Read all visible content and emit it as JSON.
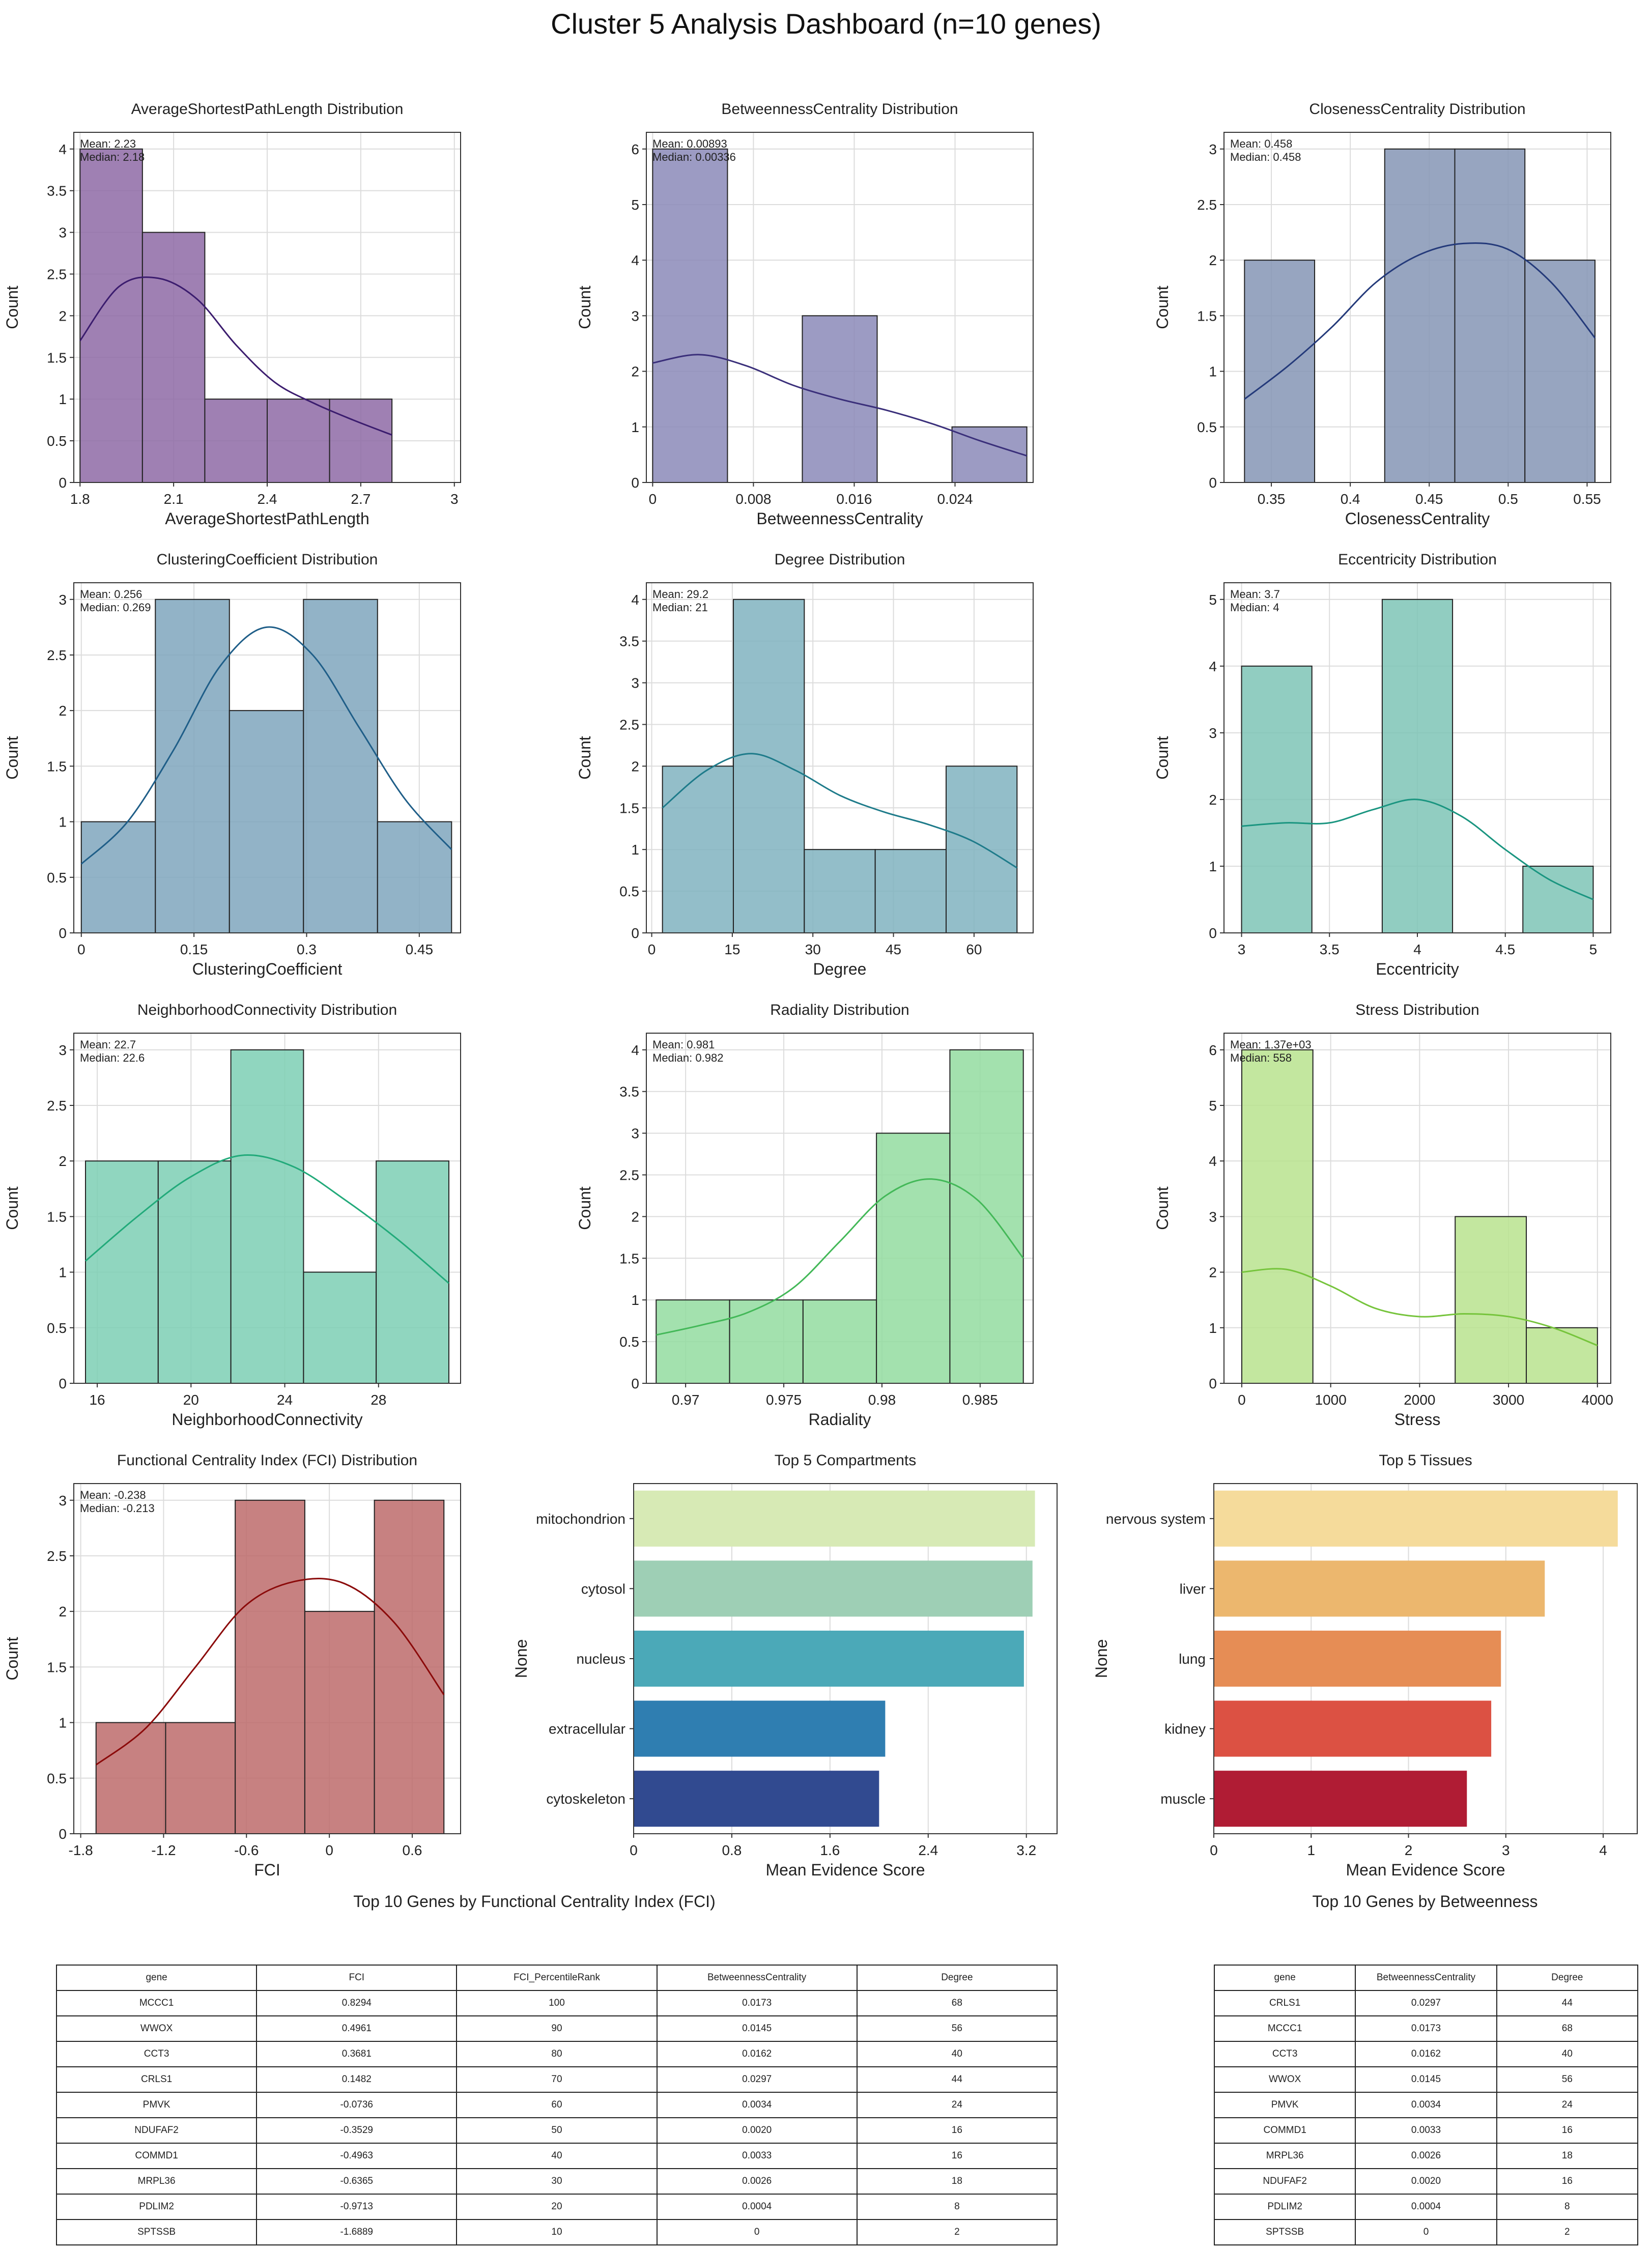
{
  "title": "Cluster 5 Analysis Dashboard (n=10 genes)",
  "chart_data": [
    {
      "type": "histogram",
      "title": "AverageShortestPathLength Distribution",
      "xlabel": "AverageShortestPathLength",
      "ylabel": "Count",
      "bin_edges": [
        1.8,
        2.0,
        2.2,
        2.4,
        2.6,
        2.8
      ],
      "counts": [
        4,
        3,
        1,
        1,
        1
      ],
      "xlim": [
        1.78,
        3.02
      ],
      "ylim": [
        0,
        4.2
      ],
      "xticks": [
        1.8,
        2.1,
        2.4,
        2.7,
        3.0
      ],
      "xtick_labels": [
        "1.8",
        "2.1",
        "2.4",
        "2.7",
        "3"
      ],
      "yticks": [
        0,
        0.5,
        1,
        1.5,
        2,
        2.5,
        3,
        3.5,
        4
      ],
      "ytick_labels": [
        "0",
        "0.5",
        "1",
        "1.5",
        "2",
        "2.5",
        "3",
        "3.5",
        "4"
      ],
      "kde": [
        1.7,
        2.35,
        2.45,
        2.2,
        1.65,
        1.2,
        0.95,
        0.75,
        0.57
      ],
      "color": "#8e6aa6",
      "line_color": "#3b1c6e",
      "stats": [
        "Mean: 2.23",
        "Median: 2.18"
      ]
    },
    {
      "type": "histogram",
      "title": "BetweennessCentrality Distribution",
      "xlabel": "BetweennessCentrality",
      "ylabel": "Count",
      "bin_edges": [
        0,
        0.00594,
        0.01188,
        0.01782,
        0.02376,
        0.0297
      ],
      "counts": [
        6,
        0,
        3,
        0,
        1
      ],
      "xlim": [
        -0.0005,
        0.0302
      ],
      "ylim": [
        0,
        6.3
      ],
      "xticks": [
        0,
        0.008,
        0.016,
        0.024
      ],
      "xtick_labels": [
        "0",
        "0.008",
        "0.016",
        "0.024"
      ],
      "yticks": [
        0,
        1,
        2,
        3,
        4,
        5,
        6
      ],
      "ytick_labels": [
        "0",
        "1",
        "2",
        "3",
        "4",
        "5",
        "6"
      ],
      "kde": [
        2.15,
        2.3,
        2.1,
        1.75,
        1.5,
        1.3,
        1.05,
        0.75,
        0.48
      ],
      "color": "#8b8ab8",
      "line_color": "#3a2f7a",
      "stats": [
        "Mean: 0.00893",
        "Median: 0.00336"
      ]
    },
    {
      "type": "histogram",
      "title": "ClosenessCentrality Distribution",
      "xlabel": "ClosenessCentrality",
      "ylabel": "Count",
      "bin_edges": [
        0.333,
        0.3774,
        0.4218,
        0.4662,
        0.5106,
        0.555
      ],
      "counts": [
        2,
        0,
        3,
        3,
        2
      ],
      "xlim": [
        0.32,
        0.565
      ],
      "ylim": [
        0,
        3.15
      ],
      "xticks": [
        0.35,
        0.4,
        0.45,
        0.5,
        0.55
      ],
      "xtick_labels": [
        "0.35",
        "0.4",
        "0.45",
        "0.5",
        "0.55"
      ],
      "yticks": [
        0,
        0.5,
        1,
        1.5,
        2,
        2.5,
        3
      ],
      "ytick_labels": [
        "0",
        "0.5",
        "1",
        "1.5",
        "2",
        "2.5",
        "3"
      ],
      "kde": [
        0.75,
        1.05,
        1.4,
        1.8,
        2.05,
        2.15,
        2.1,
        1.8,
        1.3
      ],
      "color": "#8595b5",
      "line_color": "#243a7a",
      "stats": [
        "Mean: 0.458",
        "Median: 0.458"
      ]
    },
    {
      "type": "histogram",
      "title": "ClusteringCoefficient Distribution",
      "xlabel": "ClusteringCoefficient",
      "ylabel": "Count",
      "bin_edges": [
        0,
        0.0986,
        0.1972,
        0.2958,
        0.3944,
        0.493
      ],
      "counts": [
        1,
        3,
        2,
        3,
        1
      ],
      "xlim": [
        -0.01,
        0.505
      ],
      "ylim": [
        0,
        3.15
      ],
      "xticks": [
        0,
        0.15,
        0.3,
        0.45
      ],
      "xtick_labels": [
        "0",
        "0.15",
        "0.3",
        "0.45"
      ],
      "yticks": [
        0,
        0.5,
        1,
        1.5,
        2,
        2.5,
        3
      ],
      "ytick_labels": [
        "0",
        "0.5",
        "1",
        "1.5",
        "2",
        "2.5",
        "3"
      ],
      "kde": [
        0.62,
        1.0,
        1.65,
        2.4,
        2.75,
        2.5,
        1.85,
        1.2,
        0.75
      ],
      "color": "#7fa6bd",
      "line_color": "#1f5e88",
      "stats": [
        "Mean: 0.256",
        "Median: 0.269"
      ]
    },
    {
      "type": "histogram",
      "title": "Degree Distribution",
      "xlabel": "Degree",
      "ylabel": "Count",
      "bin_edges": [
        2,
        15.2,
        28.4,
        41.6,
        54.8,
        68
      ],
      "counts": [
        2,
        4,
        1,
        1,
        2
      ],
      "xlim": [
        -1,
        71
      ],
      "ylim": [
        0,
        4.2
      ],
      "xticks": [
        0,
        15,
        30,
        45,
        60
      ],
      "xtick_labels": [
        "0",
        "15",
        "30",
        "45",
        "60"
      ],
      "yticks": [
        0,
        0.5,
        1,
        1.5,
        2,
        2.5,
        3,
        3.5,
        4
      ],
      "ytick_labels": [
        "0",
        "0.5",
        "1",
        "1.5",
        "2",
        "2.5",
        "3",
        "3.5",
        "4"
      ],
      "kde": [
        1.5,
        1.95,
        2.15,
        1.95,
        1.65,
        1.45,
        1.3,
        1.1,
        0.78
      ],
      "color": "#80b3bf",
      "line_color": "#1e7b8a",
      "stats": [
        "Mean: 29.2",
        "Median: 21"
      ]
    },
    {
      "type": "histogram",
      "title": "Eccentricity Distribution",
      "xlabel": "Eccentricity",
      "ylabel": "Count",
      "bin_edges": [
        3,
        3.4,
        3.8,
        4.2,
        4.6,
        5
      ],
      "counts": [
        4,
        0,
        5,
        0,
        1
      ],
      "xlim": [
        2.9,
        5.1
      ],
      "ylim": [
        0,
        5.25
      ],
      "xticks": [
        3,
        3.5,
        4,
        4.5,
        5
      ],
      "xtick_labels": [
        "3",
        "3.5",
        "4",
        "4.5",
        "5"
      ],
      "yticks": [
        0,
        1,
        2,
        3,
        4,
        5
      ],
      "ytick_labels": [
        "0",
        "1",
        "2",
        "3",
        "4",
        "5"
      ],
      "kde": [
        1.6,
        1.65,
        1.65,
        1.85,
        2.0,
        1.75,
        1.25,
        0.8,
        0.5
      ],
      "color": "#7ec4b6",
      "line_color": "#1a9580",
      "stats": [
        "Mean: 3.7",
        "Median: 4"
      ]
    },
    {
      "type": "histogram",
      "title": "NeighborhoodConnectivity Distribution",
      "xlabel": "NeighborhoodConnectivity",
      "ylabel": "Count",
      "bin_edges": [
        15.5,
        18.6,
        21.7,
        24.8,
        27.9,
        31
      ],
      "counts": [
        2,
        2,
        3,
        1,
        2
      ],
      "xlim": [
        15.0,
        31.5
      ],
      "ylim": [
        0,
        3.15
      ],
      "xticks": [
        16,
        20,
        24,
        28
      ],
      "xtick_labels": [
        "16",
        "20",
        "24",
        "28"
      ],
      "yticks": [
        0,
        0.5,
        1,
        1.5,
        2,
        2.5,
        3
      ],
      "ytick_labels": [
        "0",
        "0.5",
        "1",
        "1.5",
        "2",
        "2.5",
        "3"
      ],
      "kde": [
        1.1,
        1.5,
        1.85,
        2.05,
        1.95,
        1.65,
        1.3,
        0.9
      ],
      "color": "#7dcfb4",
      "line_color": "#22aa7a",
      "stats": [
        "Mean: 22.7",
        "Median: 22.6"
      ]
    },
    {
      "type": "histogram",
      "title": "Radiality Distribution",
      "xlabel": "Radiality",
      "ylabel": "Count",
      "bin_edges": [
        0.9685,
        0.97224,
        0.97598,
        0.97972,
        0.98346,
        0.9872
      ],
      "counts": [
        1,
        1,
        1,
        3,
        4
      ],
      "xlim": [
        0.968,
        0.9877
      ],
      "ylim": [
        0,
        4.2
      ],
      "xticks": [
        0.97,
        0.975,
        0.98,
        0.985
      ],
      "xtick_labels": [
        "0.97",
        "0.975",
        "0.98",
        "0.985"
      ],
      "yticks": [
        0,
        0.5,
        1,
        1.5,
        2,
        2.5,
        3,
        3.5,
        4
      ],
      "ytick_labels": [
        "0",
        "0.5",
        "1",
        "1.5",
        "2",
        "2.5",
        "3",
        "3.5",
        "4"
      ],
      "kde": [
        0.58,
        0.7,
        0.85,
        1.15,
        1.7,
        2.25,
        2.45,
        2.2,
        1.5
      ],
      "color": "#93dca0",
      "line_color": "#43b858",
      "stats": [
        "Mean: 0.981",
        "Median: 0.982"
      ]
    },
    {
      "type": "histogram",
      "title": "Stress Distribution",
      "xlabel": "Stress",
      "ylabel": "Count",
      "bin_edges": [
        0,
        800,
        1600,
        2400,
        3200,
        4000
      ],
      "counts": [
        6,
        0,
        0,
        3,
        1
      ],
      "xlim": [
        -200,
        4150
      ],
      "ylim": [
        0,
        6.3
      ],
      "xticks": [
        0,
        1000,
        2000,
        3000,
        4000
      ],
      "xtick_labels": [
        "0",
        "1000",
        "2000",
        "3000",
        "4000"
      ],
      "yticks": [
        0,
        1,
        2,
        3,
        4,
        5,
        6
      ],
      "ytick_labels": [
        "0",
        "1",
        "2",
        "3",
        "4",
        "5",
        "6"
      ],
      "kde": [
        2.0,
        2.05,
        1.75,
        1.35,
        1.2,
        1.25,
        1.2,
        1.0,
        0.68
      ],
      "color": "#b9e38e",
      "line_color": "#76c43c",
      "stats": [
        "Mean: 1.37e+03",
        "Median: 558"
      ]
    },
    {
      "type": "histogram",
      "title": "Functional Centrality Index (FCI) Distribution",
      "xlabel": "FCI",
      "ylabel": "Count",
      "bin_edges": [
        -1.6889,
        -1.1852,
        -0.6815,
        -0.1777,
        0.326,
        0.8294
      ],
      "counts": [
        1,
        1,
        3,
        2,
        3
      ],
      "xlim": [
        -1.85,
        0.95
      ],
      "ylim": [
        0,
        3.15
      ],
      "xticks": [
        -1.8,
        -1.2,
        -0.6,
        0,
        0.6
      ],
      "xtick_labels": [
        "-1.8",
        "-1.2",
        "-0.6",
        "0",
        "0.6"
      ],
      "yticks": [
        0,
        0.5,
        1,
        1.5,
        2,
        2.5,
        3
      ],
      "ytick_labels": [
        "0",
        "0.5",
        "1",
        "1.5",
        "2",
        "2.5",
        "3"
      ],
      "kde": [
        0.62,
        0.95,
        1.5,
        2.05,
        2.27,
        2.25,
        1.9,
        1.25
      ],
      "color": "#bd6b6b",
      "line_color": "#8b0a0a",
      "stats": [
        "Mean: -0.238",
        "Median: -0.213"
      ]
    },
    {
      "type": "bar",
      "orientation": "horizontal",
      "title": "Top 5 Compartments",
      "xlabel": "Mean Evidence Score",
      "ylabel": "None",
      "categories": [
        "mitochondrion",
        "cytosol",
        "nucleus",
        "extracellular",
        "cytoskeleton"
      ],
      "values": [
        3.27,
        3.25,
        3.18,
        2.05,
        2.0
      ],
      "colors": [
        "#d7eab5",
        "#9ecfb5",
        "#4ba9b8",
        "#2f7eb1",
        "#314a90"
      ],
      "xlim": [
        0,
        3.45
      ],
      "xticks": [
        0,
        0.8,
        1.6,
        2.4,
        3.2
      ],
      "xtick_labels": [
        "0",
        "0.8",
        "1.6",
        "2.4",
        "3.2"
      ]
    },
    {
      "type": "bar",
      "orientation": "horizontal",
      "title": "Top 5 Tissues",
      "xlabel": "Mean Evidence Score",
      "ylabel": "None",
      "categories": [
        "nervous system",
        "liver",
        "lung",
        "kidney",
        "muscle"
      ],
      "values": [
        4.15,
        3.4,
        2.95,
        2.85,
        2.6
      ],
      "colors": [
        "#f5db9b",
        "#ecb76e",
        "#e68d55",
        "#dc5143",
        "#b01c34"
      ],
      "xlim": [
        0,
        4.35
      ],
      "xticks": [
        0,
        1,
        2,
        3,
        4
      ],
      "xtick_labels": [
        "0",
        "1",
        "2",
        "3",
        "4"
      ]
    }
  ],
  "tables": {
    "fci": {
      "title": "Top 10 Genes by Functional Centrality Index (FCI)",
      "columns": [
        "gene",
        "FCI",
        "FCI_PercentileRank",
        "BetweennessCentrality",
        "Degree"
      ],
      "rows": [
        [
          "MCCC1",
          "0.8294",
          "100",
          "0.0173",
          "68"
        ],
        [
          "WWOX",
          "0.4961",
          "90",
          "0.0145",
          "56"
        ],
        [
          "CCT3",
          "0.3681",
          "80",
          "0.0162",
          "40"
        ],
        [
          "CRLS1",
          "0.1482",
          "70",
          "0.0297",
          "44"
        ],
        [
          "PMVK",
          "-0.0736",
          "60",
          "0.0034",
          "24"
        ],
        [
          "NDUFAF2",
          "-0.3529",
          "50",
          "0.0020",
          "16"
        ],
        [
          "COMMD1",
          "-0.4963",
          "40",
          "0.0033",
          "16"
        ],
        [
          "MRPL36",
          "-0.6365",
          "30",
          "0.0026",
          "18"
        ],
        [
          "PDLIM2",
          "-0.9713",
          "20",
          "0.0004",
          "8"
        ],
        [
          "SPTSSB",
          "-1.6889",
          "10",
          "0",
          "2"
        ]
      ]
    },
    "betweenness": {
      "title": "Top 10 Genes by Betweenness",
      "columns": [
        "gene",
        "BetweennessCentrality",
        "Degree"
      ],
      "rows": [
        [
          "CRLS1",
          "0.0297",
          "44"
        ],
        [
          "MCCC1",
          "0.0173",
          "68"
        ],
        [
          "CCT3",
          "0.0162",
          "40"
        ],
        [
          "WWOX",
          "0.0145",
          "56"
        ],
        [
          "PMVK",
          "0.0034",
          "24"
        ],
        [
          "COMMD1",
          "0.0033",
          "16"
        ],
        [
          "MRPL36",
          "0.0026",
          "18"
        ],
        [
          "NDUFAF2",
          "0.0020",
          "16"
        ],
        [
          "PDLIM2",
          "0.0004",
          "8"
        ],
        [
          "SPTSSB",
          "0",
          "2"
        ]
      ]
    }
  }
}
